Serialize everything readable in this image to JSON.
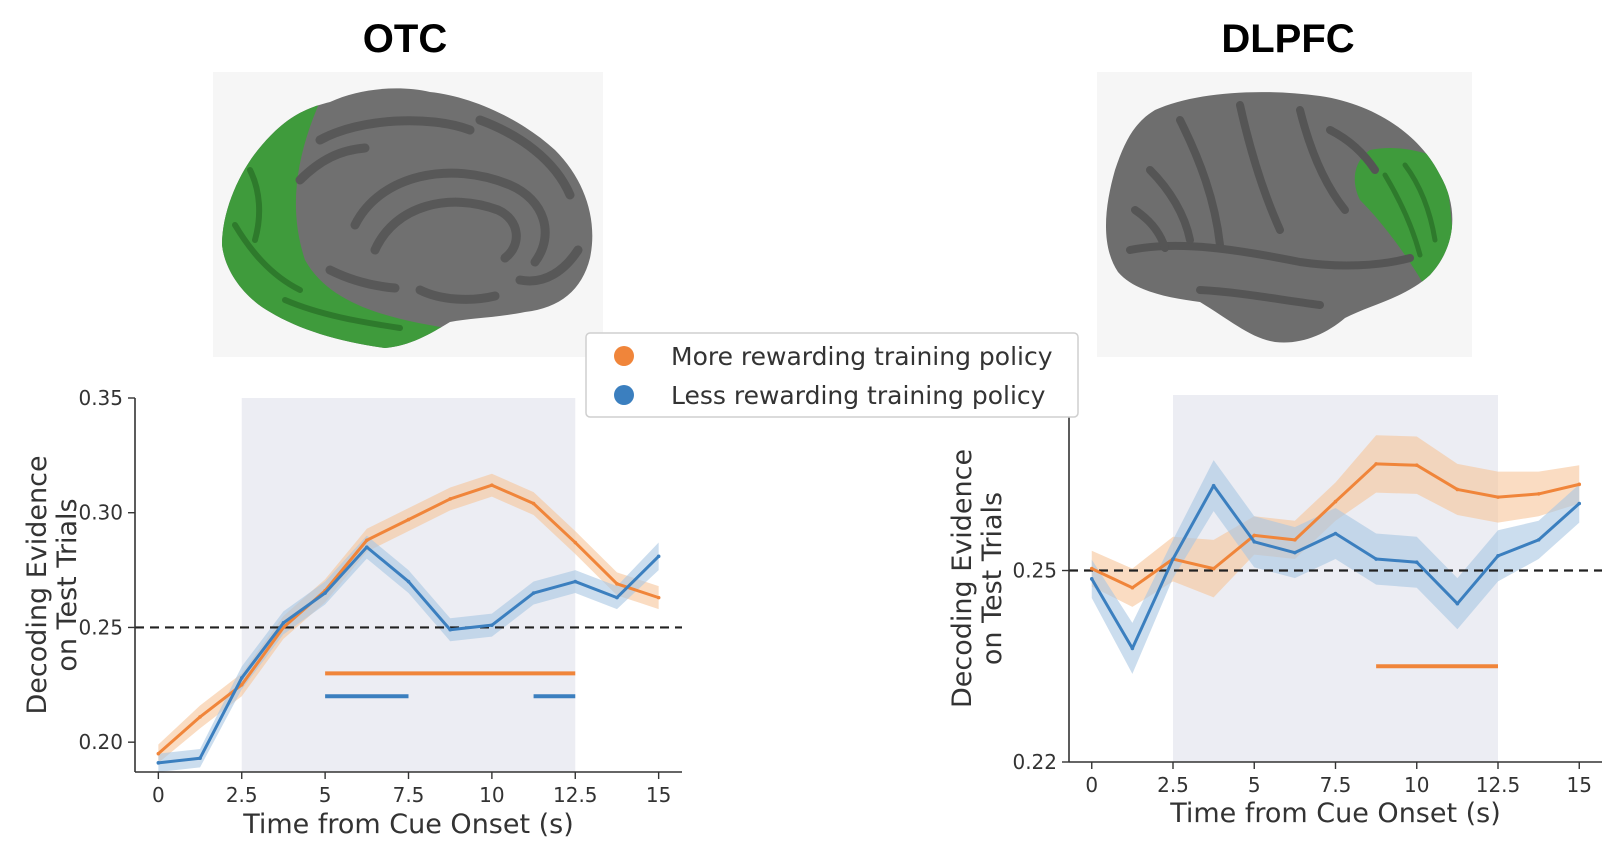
{
  "colors": {
    "more": "#f0853a",
    "less": "#3b7fbf",
    "more_band": "#f7c49a",
    "less_band": "#a9c7e2",
    "window": "#ecedf3",
    "roi": "#3b9a3a",
    "cortex": "#6f6f6f"
  },
  "panels": {
    "left": {
      "title": "OTC",
      "brain_icon": "brain-medial-view-icon"
    },
    "right": {
      "title": "DLPFC",
      "brain_icon": "brain-lateral-view-icon"
    }
  },
  "legend": {
    "items": [
      {
        "label": "More rewarding training policy",
        "color": "#f0853a"
      },
      {
        "label": "Less rewarding training policy",
        "color": "#3b7fbf"
      }
    ]
  },
  "chart_data": [
    {
      "type": "line",
      "title": "OTC",
      "xlabel": "Time from Cue Onset (s)",
      "ylabel": "Decoding Evidence on Test Trials",
      "xlim": [
        -0.7,
        15.7
      ],
      "ylim": [
        0.187,
        0.35
      ],
      "xticks": [
        0,
        2.5,
        5,
        7.5,
        10,
        12.5,
        15
      ],
      "xtick_labels": [
        "0",
        "2.5",
        "5",
        "7.5",
        "10",
        "12.5",
        "15"
      ],
      "yticks": [
        0.2,
        0.25,
        0.3,
        0.35
      ],
      "ytick_labels": [
        "0.20",
        "0.25",
        "0.30",
        "0.35"
      ],
      "chance_level": 0.25,
      "shaded_window": [
        2.5,
        12.5
      ],
      "x": [
        0,
        1.25,
        2.5,
        3.75,
        5,
        6.25,
        7.5,
        8.75,
        10,
        11.25,
        12.5,
        13.75,
        15
      ],
      "series": [
        {
          "name": "More rewarding training policy",
          "values": [
            0.195,
            0.211,
            0.225,
            0.25,
            0.266,
            0.288,
            0.297,
            0.306,
            0.312,
            0.304,
            0.287,
            0.269,
            0.263
          ],
          "sem": [
            0.004,
            0.005,
            0.005,
            0.005,
            0.005,
            0.005,
            0.005,
            0.005,
            0.005,
            0.005,
            0.005,
            0.005,
            0.005
          ]
        },
        {
          "name": "Less rewarding training policy",
          "values": [
            0.191,
            0.193,
            0.228,
            0.252,
            0.265,
            0.285,
            0.27,
            0.249,
            0.251,
            0.265,
            0.27,
            0.263,
            0.281
          ],
          "sem": [
            0.004,
            0.004,
            0.005,
            0.005,
            0.005,
            0.005,
            0.005,
            0.005,
            0.005,
            0.005,
            0.005,
            0.005,
            0.006
          ]
        }
      ],
      "significance_bars": [
        {
          "series": 0,
          "x": [
            5,
            12.5
          ],
          "y": 0.23
        },
        {
          "series": 1,
          "x": [
            5,
            7.5
          ],
          "y": 0.22
        },
        {
          "series": 1,
          "x": [
            11.25,
            12.5
          ],
          "y": 0.22
        }
      ]
    },
    {
      "type": "line",
      "title": "DLPFC",
      "xlabel": "Time from Cue Onset (s)",
      "ylabel": "Decoding Evidence on Test Trials",
      "xlim": [
        -0.7,
        15.7
      ],
      "ylim": [
        0.22,
        0.2775
      ],
      "xticks": [
        0,
        2.5,
        5,
        7.5,
        10,
        12.5,
        15
      ],
      "xtick_labels": [
        "0",
        "2.5",
        "5",
        "7.5",
        "10",
        "12.5",
        "15"
      ],
      "yticks": [
        0.22,
        0.25
      ],
      "ytick_labels": [
        "0.22",
        "0.25"
      ],
      "chance_level": 0.25,
      "shaded_window": [
        2.5,
        12.5
      ],
      "x": [
        0,
        1.25,
        2.5,
        3.75,
        5,
        6.25,
        7.5,
        8.75,
        10,
        11.25,
        12.5,
        13.75,
        15
      ],
      "series": [
        {
          "name": "More rewarding training policy",
          "values": [
            0.2503,
            0.2473,
            0.2518,
            0.2503,
            0.2555,
            0.2548,
            0.2608,
            0.2667,
            0.2665,
            0.2627,
            0.2615,
            0.262,
            0.2635
          ],
          "sem": [
            0.0028,
            0.003,
            0.0035,
            0.0045,
            0.003,
            0.003,
            0.003,
            0.0045,
            0.0045,
            0.004,
            0.004,
            0.0035,
            0.003
          ]
        },
        {
          "name": "Less rewarding training policy",
          "values": [
            0.2487,
            0.2378,
            0.2518,
            0.2633,
            0.2545,
            0.2528,
            0.2558,
            0.2518,
            0.2513,
            0.2448,
            0.2523,
            0.2548,
            0.2605
          ],
          "sem": [
            0.003,
            0.004,
            0.003,
            0.004,
            0.004,
            0.004,
            0.004,
            0.004,
            0.004,
            0.004,
            0.004,
            0.003,
            0.003
          ]
        }
      ],
      "significance_bars": [
        {
          "series": 0,
          "x": [
            8.75,
            12.5
          ],
          "y": 0.235
        }
      ]
    }
  ]
}
